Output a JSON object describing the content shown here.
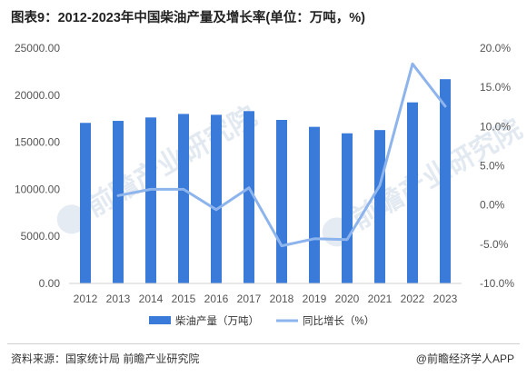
{
  "title": "图表9：2012-2023年中国柴油产量及增长率(单位：万吨，%)",
  "watermark": "前瞻产业研究院",
  "source": "资料来源：国家统计局 前瞻产业研究院",
  "credit": "@前瞻经济学人APP",
  "colors": {
    "bar": "#3a7ad9",
    "line": "#8db4ec",
    "tick": "#555555"
  },
  "chart_data": {
    "type": "bar",
    "categories": [
      "2012",
      "2013",
      "2014",
      "2015",
      "2016",
      "2017",
      "2018",
      "2019",
      "2020",
      "2021",
      "2022",
      "2023"
    ],
    "series": [
      {
        "name": "柴油产量（万吨）",
        "type": "bar",
        "axis": "left",
        "values": [
          17060,
          17273,
          17635,
          18008,
          17918,
          18310,
          17376,
          16638,
          15951,
          16296,
          19239,
          21700
        ]
      },
      {
        "name": "同比增长（%）",
        "type": "line",
        "axis": "right",
        "values": [
          null,
          1.2,
          2.0,
          2.0,
          -0.6,
          2.2,
          -5.2,
          -4.3,
          -4.4,
          2.5,
          18.0,
          12.6
        ]
      }
    ],
    "left_axis": {
      "ylim": [
        0,
        25000
      ],
      "ticks": [
        0,
        5000,
        10000,
        15000,
        20000,
        25000
      ],
      "tick_labels": [
        "0.00",
        "5000.00",
        "10000.00",
        "15000.00",
        "20000.00",
        "25000.00"
      ]
    },
    "right_axis": {
      "ylim": [
        -10,
        20
      ],
      "ticks": [
        -10,
        -5,
        0,
        5,
        10,
        15,
        20
      ],
      "tick_labels": [
        "-10.0%",
        "-5.0%",
        "0.0%",
        "5.0%",
        "10.0%",
        "15.0%",
        "20.0%"
      ]
    },
    "grid": false,
    "legend_position": "bottom"
  }
}
